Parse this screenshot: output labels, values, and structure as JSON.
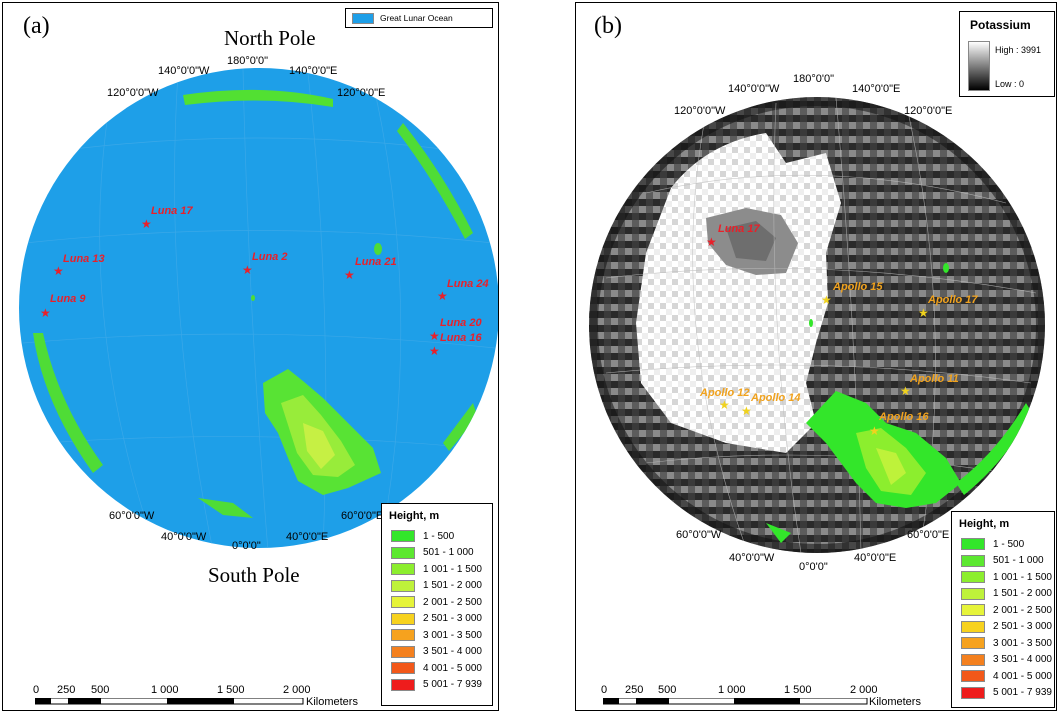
{
  "panel_a": {
    "label": "(a)",
    "north_pole": "North Pole",
    "south_pole": "South Pole",
    "ocean_legend": {
      "label": "Great Lunar Ocean",
      "color": "#1e9fe8"
    },
    "coords": [
      "180°0'0\"",
      "140°0'0\"W",
      "140°0'0\"E",
      "120°0'0\"W",
      "120°0'0\"E",
      "60°0'0\"W",
      "60°0'0\"E",
      "40°0'0\"W",
      "40°0'0\"E",
      "0°0'0\""
    ],
    "sites": [
      "Luna 17",
      "Luna 13",
      "Luna 2",
      "Luna 21",
      "Luna 24",
      "Luna 9",
      "Luna 20",
      "Luna 16"
    ],
    "scale_labels": [
      "0",
      "250",
      "500",
      "1 000",
      "1 500",
      "2 000",
      "Kilometers"
    ]
  },
  "panel_b": {
    "label": "(b)",
    "potassium": {
      "title": "Potassium",
      "high": "High : 3991",
      "low": "Low : 0"
    },
    "coords": [
      "180°0'0\"",
      "140°0'0\"W",
      "140°0'0\"E",
      "120°0'0\"W",
      "120°0'0\"E",
      "60°0'0\"W",
      "60°0'0\"E",
      "40°0'0\"W",
      "40°0'0\"E",
      "0°0'0\""
    ],
    "sites": [
      "Luna 17",
      "Apollo 15",
      "Apollo 17",
      "Apollo 11",
      "Apollo 12",
      "Apollo 14",
      "Apollo 16"
    ],
    "scale_labels": [
      "0",
      "250",
      "500",
      "1 000",
      "1 500",
      "2 000",
      "Kilometers"
    ]
  },
  "height_legend": {
    "title": "Height, m",
    "classes": [
      {
        "label": "1 - 500",
        "color": "#33e62a"
      },
      {
        "label": "501 - 1 000",
        "color": "#5ce830"
      },
      {
        "label": "1 001 - 1 500",
        "color": "#8cee2e"
      },
      {
        "label": "1 501 - 2 000",
        "color": "#bef23a"
      },
      {
        "label": "2 001 - 2 500",
        "color": "#e6f43a"
      },
      {
        "label": "2 501 - 3 000",
        "color": "#f7d21e"
      },
      {
        "label": "3 001 - 3 500",
        "color": "#f6a21e"
      },
      {
        "label": "3 501 - 4 000",
        "color": "#f4801e"
      },
      {
        "label": "4 001 - 5 000",
        "color": "#f2581a"
      },
      {
        "label": "5 001 - 7 939",
        "color": "#ee1c1c"
      }
    ]
  }
}
